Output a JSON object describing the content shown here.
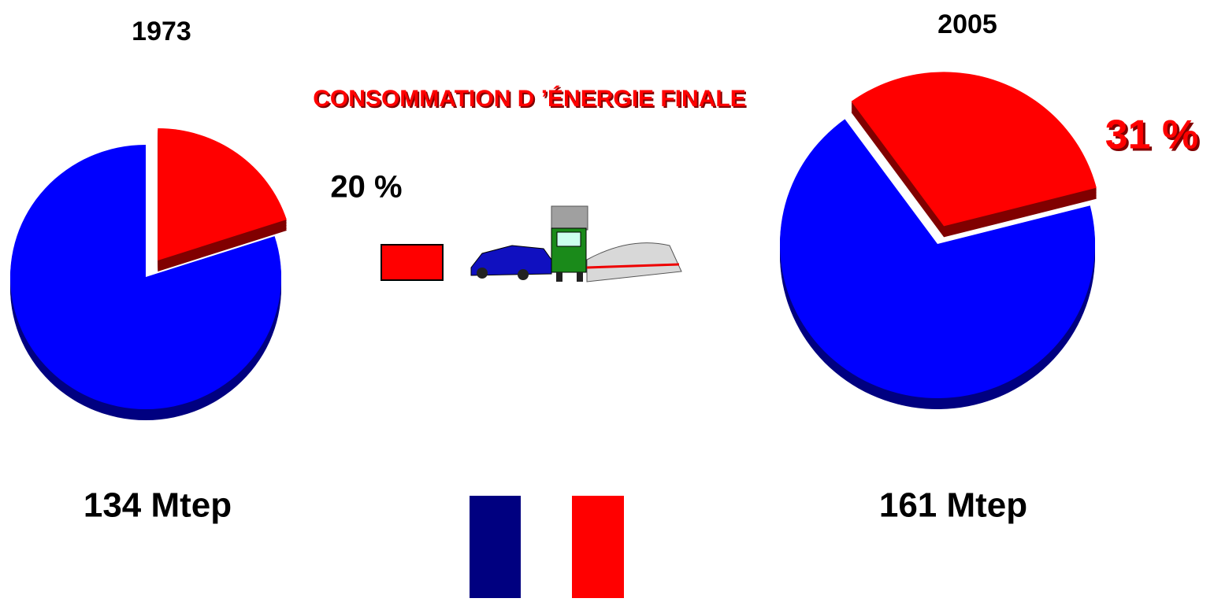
{
  "title": "CONSOMMATION D ’ÉNERGIE FINALE",
  "chart_data": [
    {
      "type": "pie",
      "title": "1973",
      "total_label": "134 Mtep",
      "values": [
        20,
        80
      ],
      "value_labels": [
        "20 %",
        null
      ],
      "colors": [
        "#ff0000",
        "#0000ff"
      ]
    },
    {
      "type": "pie",
      "title": "2005",
      "total_label": "161 Mtep",
      "values": [
        31,
        69
      ],
      "value_labels": [
        "31 %",
        null
      ],
      "colors": [
        "#ff0000",
        "#0000ff"
      ]
    }
  ]
}
